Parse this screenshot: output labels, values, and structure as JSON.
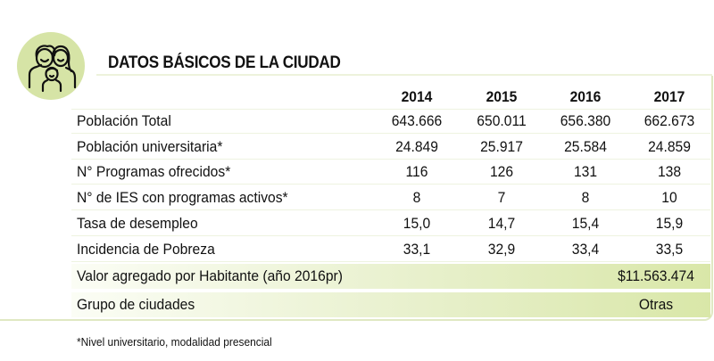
{
  "title": "DATOS BÁSICOS DE LA CIUDAD",
  "icon": "family-icon",
  "accent_color": "#d6e4a6",
  "years": [
    "2014",
    "2015",
    "2016",
    "2017"
  ],
  "rows": [
    {
      "label": "Población Total",
      "values": [
        "643.666",
        "650.011",
        "656.380",
        "662.673"
      ]
    },
    {
      "label": "Población universitaria*",
      "values": [
        "24.849",
        "25.917",
        "25.584",
        "24.859"
      ]
    },
    {
      "label": "N° Programas ofrecidos*",
      "values": [
        "116",
        "126",
        "131",
        "138"
      ]
    },
    {
      "label": "N° de IES con programas activos*",
      "values": [
        "8",
        "7",
        "8",
        "10"
      ]
    },
    {
      "label": "Tasa de desempleo",
      "values": [
        "15,0",
        "14,7",
        "15,4",
        "15,9"
      ]
    },
    {
      "label": "Incidencia de Pobreza",
      "values": [
        "33,1",
        "32,9",
        "33,4",
        "33,5"
      ]
    }
  ],
  "value_added": {
    "label": "Valor agregado por Habitante (año 2016pr)",
    "value": "$11.563.474"
  },
  "city_group": {
    "label": "Grupo de ciudades",
    "value": "Otras"
  },
  "footnote": "*Nivel universitario, modalidad presencial"
}
